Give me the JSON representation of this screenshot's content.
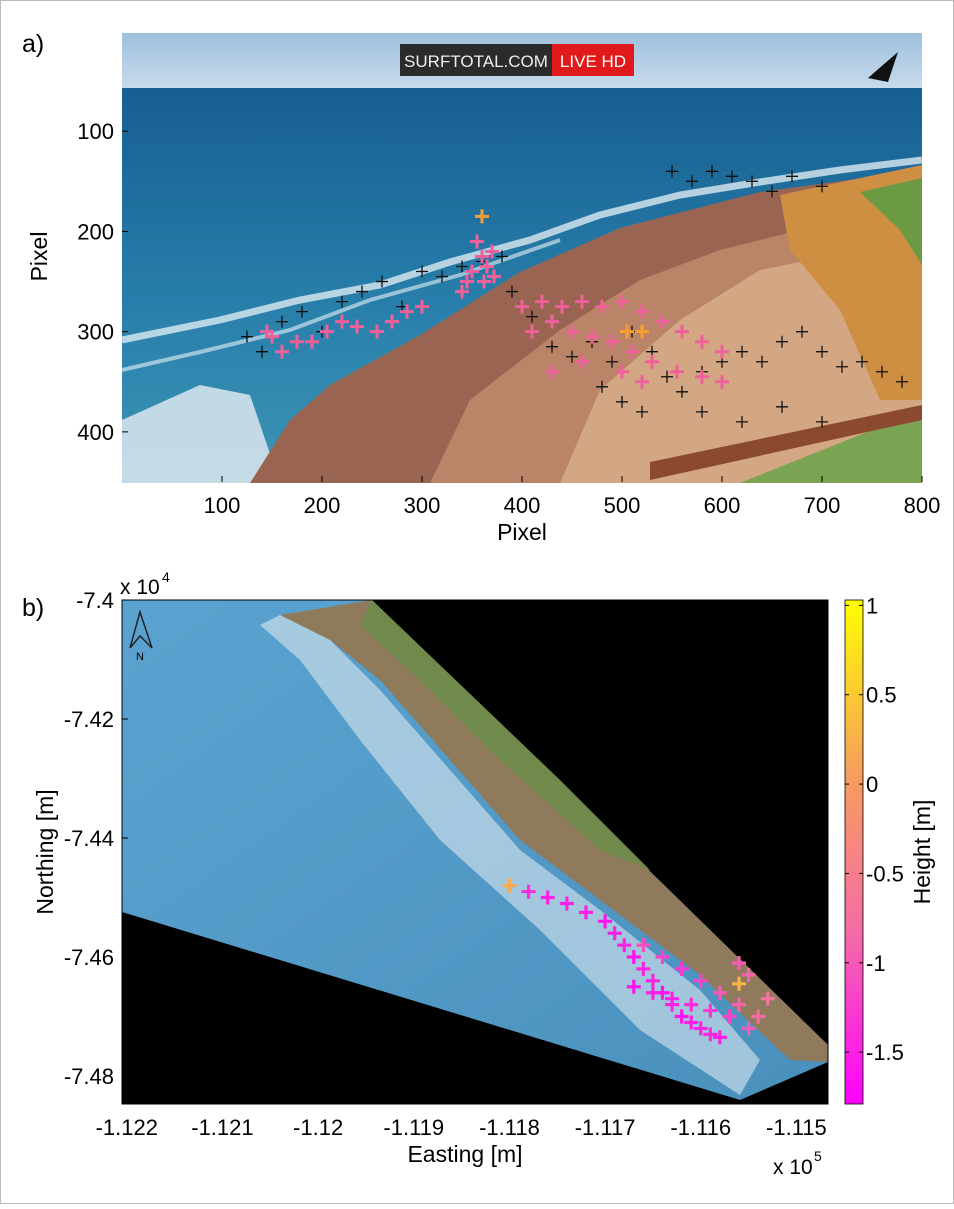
{
  "chart_data": [
    {
      "type": "scatter",
      "label": "a)",
      "image_text": [
        "SURFTOTAL.COM",
        "LIVE HD"
      ],
      "x_label": "Pixel",
      "y_label": "Pixel",
      "xlim": [
        0,
        800
      ],
      "ylim": [
        0,
        450
      ],
      "y_reversed": true,
      "xticks": [
        100,
        200,
        300,
        400,
        500,
        600,
        700,
        800
      ],
      "yticks": [
        100,
        200,
        300,
        400
      ],
      "series": [
        {
          "color": "#111111",
          "x": [
            125,
            140,
            160,
            180,
            200,
            220,
            240,
            260,
            280,
            300,
            320,
            340,
            360,
            380,
            390,
            410,
            430,
            450,
            470,
            490,
            510,
            530,
            545,
            560,
            580,
            600,
            620,
            640,
            660,
            680,
            700,
            720,
            740,
            760,
            780,
            550,
            570,
            590,
            610,
            630,
            650,
            670,
            700,
            580,
            620,
            660,
            700,
            480,
            500,
            520
          ],
          "y": [
            305,
            320,
            290,
            280,
            300,
            270,
            260,
            250,
            275,
            240,
            245,
            235,
            230,
            225,
            260,
            285,
            315,
            325,
            310,
            330,
            300,
            320,
            345,
            360,
            340,
            330,
            320,
            330,
            310,
            300,
            320,
            335,
            330,
            340,
            350,
            140,
            150,
            140,
            145,
            150,
            160,
            145,
            155,
            380,
            390,
            375,
            390,
            355,
            370,
            380
          ]
        },
        {
          "color": "#f0609a",
          "x": [
            355,
            360,
            365,
            370,
            350,
            345,
            362,
            372,
            340,
            300,
            285,
            270,
            255,
            235,
            220,
            205,
            190,
            175,
            160,
            150,
            145,
            400,
            420,
            440,
            460,
            480,
            500,
            520,
            540,
            560,
            580,
            600,
            410,
            430,
            450,
            470,
            490,
            510,
            530,
            555,
            580,
            600,
            430,
            460,
            500,
            520
          ],
          "y": [
            210,
            225,
            235,
            220,
            240,
            250,
            250,
            245,
            260,
            275,
            280,
            290,
            300,
            295,
            290,
            300,
            310,
            310,
            320,
            305,
            300,
            275,
            270,
            275,
            270,
            275,
            270,
            280,
            290,
            300,
            310,
            320,
            300,
            290,
            300,
            305,
            310,
            320,
            330,
            340,
            345,
            350,
            340,
            330,
            340,
            350
          ]
        },
        {
          "color": "#f5a030",
          "x": [
            360,
            505,
            520
          ],
          "y": [
            185,
            300,
            300
          ]
        }
      ]
    },
    {
      "type": "scatter",
      "label": "b)",
      "north_label": "N",
      "x_label": "Easting [m]",
      "y_label": "Northing [m]",
      "colorbar_label": "Height [m]",
      "x_multiplier": {
        "base": "x 10",
        "exponent": "5"
      },
      "y_multiplier": {
        "base": "x 10",
        "exponent": "4"
      },
      "xlim": [
        -1.12205,
        -1.11467
      ],
      "ylim": [
        -7.4847,
        -7.4
      ],
      "xticks": [
        -1.122,
        -1.121,
        -1.12,
        -1.119,
        -1.118,
        -1.117,
        -1.116,
        -1.115
      ],
      "yticks": [
        -7.4,
        -7.42,
        -7.44,
        -7.46,
        -7.48
      ],
      "clim": [
        -1.79,
        1.03
      ],
      "cticks": [
        1,
        0.5,
        0,
        -0.5,
        -1,
        -1.5
      ],
      "colormap": [
        "#ff00ff",
        "#f56aa8",
        "#f7a05a",
        "#ffff00"
      ],
      "points": {
        "x": [
          -1.118,
          -1.1178,
          -1.1176,
          -1.1174,
          -1.1172,
          -1.117,
          -1.1169,
          -1.1168,
          -1.1167,
          -1.1166,
          -1.1165,
          -1.1164,
          -1.1163,
          -1.1162,
          -1.1161,
          -1.116,
          -1.1159,
          -1.1158,
          -1.1166,
          -1.1164,
          -1.1162,
          -1.116,
          -1.1158,
          -1.1156,
          -1.1154,
          -1.1155,
          -1.1157,
          -1.1159,
          -1.1161,
          -1.1163,
          -1.1165,
          -1.1167,
          -1.1156,
          -1.1153,
          -1.1155,
          -1.1156
        ],
        "y": [
          -7.448,
          -7.449,
          -7.45,
          -7.451,
          -7.4525,
          -7.454,
          -7.456,
          -7.458,
          -7.46,
          -7.462,
          -7.464,
          -7.466,
          -7.468,
          -7.47,
          -7.471,
          -7.472,
          -7.473,
          -7.4735,
          -7.458,
          -7.46,
          -7.462,
          -7.464,
          -7.466,
          -7.468,
          -7.47,
          -7.472,
          -7.47,
          -7.469,
          -7.468,
          -7.467,
          -7.466,
          -7.465,
          -7.4645,
          -7.467,
          -7.463,
          -7.461
        ],
        "height": [
          0.2,
          -1.4,
          -1.5,
          -1.5,
          -1.5,
          -1.6,
          -1.5,
          -1.5,
          -1.6,
          -1.5,
          -1.5,
          -1.6,
          -1.5,
          -1.6,
          -1.5,
          -1.5,
          -1.4,
          -1.5,
          -1.1,
          -1.2,
          -1.3,
          -1.2,
          -1.0,
          -0.9,
          -0.8,
          -1.0,
          -1.2,
          -1.3,
          -1.4,
          -1.5,
          -1.5,
          -1.6,
          0.3,
          -0.7,
          -0.9,
          -1.0
        ]
      }
    }
  ]
}
